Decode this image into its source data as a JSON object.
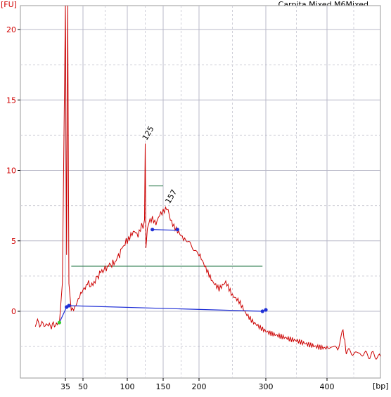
{
  "chart_data": {
    "type": "line",
    "title": "Carpita Mixed M6Mixed ...",
    "ylabel": "[FU]",
    "xlabel": "[bp]",
    "ylim": [
      -4,
      22
    ],
    "yticks": [
      0,
      5,
      10,
      15,
      20
    ],
    "xticks": [
      {
        "label": "35",
        "value": 35
      },
      {
        "label": "50",
        "value": 50
      },
      {
        "label": "100",
        "value": 100
      },
      {
        "label": "150",
        "value": 150
      },
      {
        "label": "200",
        "value": 200
      },
      {
        "label": "300",
        "value": 300
      },
      {
        "label": "400",
        "value": 400
      }
    ],
    "grid": true,
    "colors": {
      "trace": "#cc0000",
      "baseline": "#1f2fd6",
      "region": "#2e7d4f",
      "marker_start": "#33cc33"
    },
    "series": [
      {
        "x": [
          25,
          29,
          31,
          33,
          34,
          35,
          36,
          37,
          38,
          40,
          43,
          46,
          50,
          55,
          60,
          65,
          70,
          75,
          80,
          85,
          90,
          95,
          100,
          105,
          110,
          115,
          120,
          122,
          124,
          125,
          126,
          128,
          130,
          135,
          140,
          145,
          150,
          155,
          157,
          160,
          165,
          170,
          175,
          180,
          190,
          200,
          210,
          220,
          230,
          240,
          250,
          260,
          265,
          270,
          280,
          290,
          300,
          310,
          320,
          330,
          340,
          360,
          380,
          400,
          420,
          430,
          435,
          436,
          440,
          460,
          480,
          500
        ],
        "values": [
          -0.8,
          -1.0,
          -1.0,
          -0.8,
          2.0,
          22.0,
          4.0,
          22.0,
          2.0,
          0.3,
          0.3,
          0.7,
          1.4,
          2.0,
          1.8,
          2.3,
          2.8,
          3.0,
          3.3,
          3.4,
          3.9,
          4.6,
          5.0,
          5.5,
          5.8,
          5.5,
          6.2,
          5.8,
          6.5,
          11.9,
          4.5,
          6.0,
          6.4,
          6.6,
          6.2,
          6.8,
          7.0,
          7.2,
          7.4,
          6.4,
          5.9,
          5.6,
          5.3,
          5.0,
          4.6,
          4.2,
          3.2,
          2.2,
          1.6,
          2.0,
          1.0,
          0.6,
          0.2,
          -0.2,
          -0.7,
          -1.0,
          -1.3,
          -1.5,
          -1.7,
          -1.9,
          -2.1,
          -2.3,
          -2.4,
          -2.5,
          -2.6,
          -1.5,
          -2.7,
          -2.8,
          -2.9,
          -3.0,
          -3.1,
          -3.2
        ]
      }
    ],
    "peak_labels": [
      {
        "text": "125",
        "x": 125,
        "y": 11.9
      },
      {
        "text": "157",
        "x": 157,
        "y": 7.4
      }
    ],
    "baseline_points": [
      {
        "x": 33,
        "y": -0.8
      },
      {
        "x": 36,
        "y": 0.3
      },
      {
        "x": 38,
        "y": 0.4
      },
      {
        "x": 295,
        "y": 0.0
      },
      {
        "x": 300,
        "y": 0.1
      }
    ],
    "region_markers": [
      {
        "x": [
          135,
          170
        ],
        "y": 5.8
      },
      {
        "x": [
          130,
          150
        ],
        "y": 8.9
      }
    ],
    "region_lines": [
      {
        "x": [
          40,
          295
        ],
        "y": 3.2
      }
    ]
  }
}
